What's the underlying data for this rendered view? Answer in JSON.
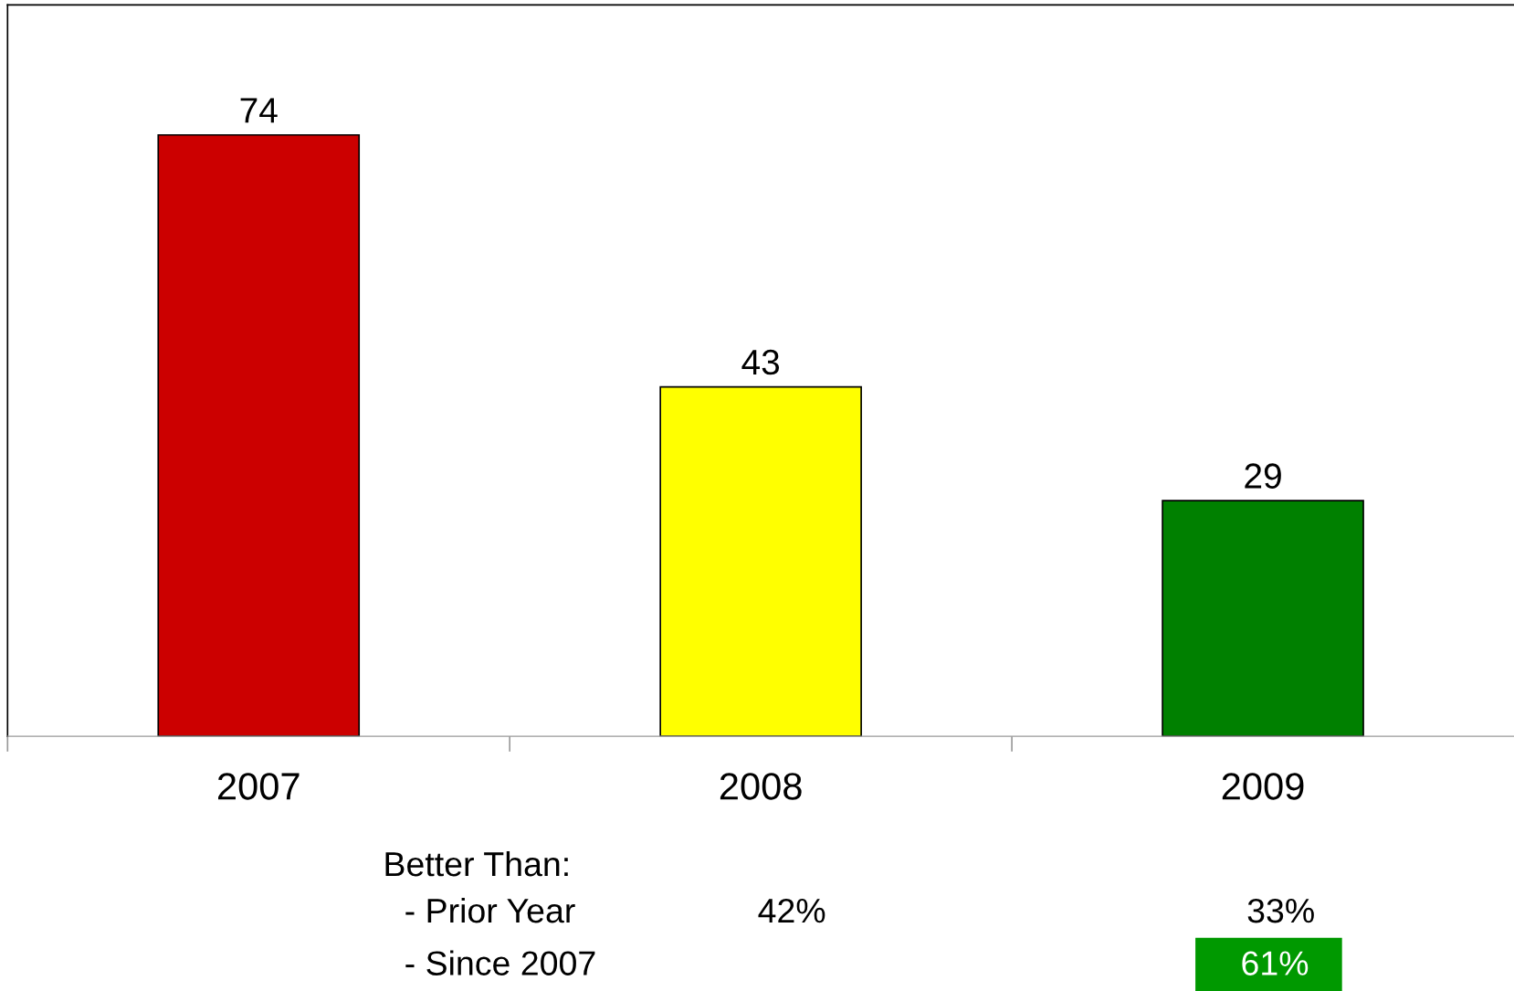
{
  "chart_data": {
    "type": "bar",
    "categories": [
      "2007",
      "2008",
      "2009"
    ],
    "values": [
      74,
      43,
      29
    ],
    "colors": [
      "#cc0000",
      "#ffff00",
      "#008000"
    ],
    "ylim": [
      0,
      90
    ],
    "tick_labels": "x",
    "data_labels": true,
    "grid": false,
    "legend": false,
    "annotations": [
      "Better Than:",
      "- Prior Year",
      "- Since 2007",
      "42%",
      "33%",
      "61%"
    ]
  }
}
